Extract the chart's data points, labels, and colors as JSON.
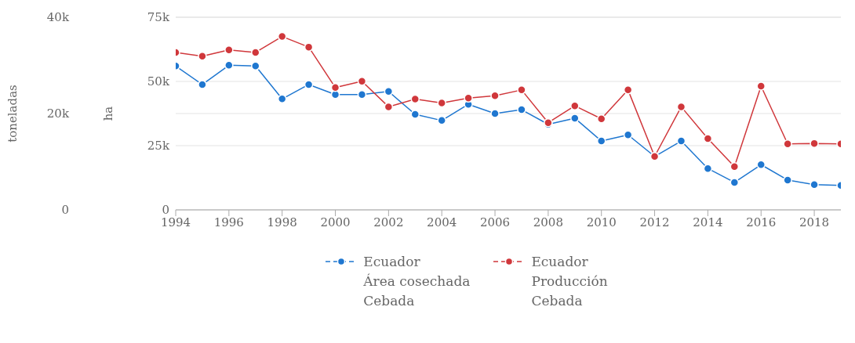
{
  "chart_data": {
    "type": "line",
    "ylabel": "ha",
    "y2label": "toneladas",
    "x": [
      1994,
      1995,
      1996,
      1997,
      1998,
      1999,
      2000,
      2001,
      2002,
      2003,
      2004,
      2005,
      2006,
      2007,
      2008,
      2009,
      2010,
      2011,
      2012,
      2013,
      2014,
      2015,
      2016,
      2017,
      2018,
      2019
    ],
    "xlim": [
      1994,
      2019
    ],
    "xticks": [
      1994,
      1996,
      1998,
      2000,
      2002,
      2004,
      2006,
      2008,
      2010,
      2012,
      2014,
      2016,
      2018
    ],
    "ylim": [
      0,
      75000
    ],
    "yticks": [
      {
        "value": 0,
        "label": "0"
      },
      {
        "value": 25000,
        "label": "25k"
      },
      {
        "value": 50000,
        "label": "50k"
      },
      {
        "value": 75000,
        "label": "75k"
      }
    ],
    "y2lim": [
      0,
      40000
    ],
    "y2ticks": [
      {
        "value": 0,
        "label": "0"
      },
      {
        "value": 20000,
        "label": "20k"
      },
      {
        "value": 40000,
        "label": "40k"
      }
    ],
    "series": [
      {
        "name": "Ecuador\nÁrea cosechada\nCebada",
        "color": "#1f77d0",
        "axis": "y",
        "values": [
          56000,
          48800,
          56300,
          56000,
          43200,
          48800,
          44900,
          44900,
          46100,
          37200,
          34800,
          41100,
          37500,
          39000,
          33300,
          35700,
          26800,
          29200,
          20800,
          26800,
          16100,
          10700,
          17600,
          11600,
          9800,
          9500
        ]
      },
      {
        "name": "Ecuador\nProducción\nCebada",
        "color": "#d0373b",
        "axis": "y2",
        "values": [
          32700,
          31900,
          33200,
          32700,
          36000,
          33800,
          25400,
          26700,
          21400,
          23000,
          22200,
          23200,
          23700,
          24900,
          18100,
          21600,
          18900,
          24900,
          11100,
          21400,
          14800,
          9000,
          25700,
          13700,
          13800,
          13700
        ]
      }
    ],
    "grid": "y",
    "legend": "bottom",
    "marker": "circle",
    "line_style": "solid"
  }
}
